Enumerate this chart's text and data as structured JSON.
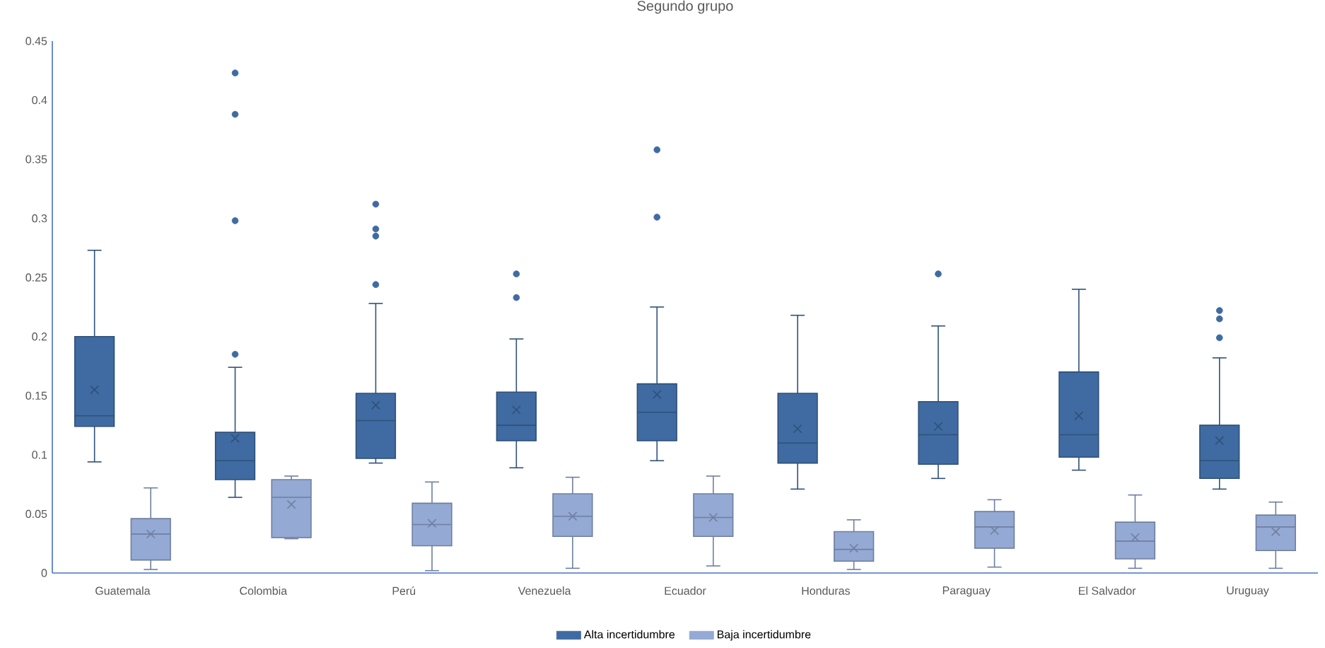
{
  "chart_data": {
    "type": "box",
    "title": "Segundo grupo",
    "categories": [
      "Guatemala",
      "Colombia",
      "Perú",
      "Venezuela",
      "Ecuador",
      "Honduras",
      "Paraguay",
      "El Salvador",
      "Uruguay"
    ],
    "ylim": [
      0,
      0.45
    ],
    "yticks": [
      0,
      0.05,
      0.1,
      0.15,
      0.2,
      0.25,
      0.3,
      0.35,
      0.4,
      0.45
    ],
    "legend": "bottom",
    "grid": false,
    "series": [
      {
        "name": "Alta incertidumbre",
        "color": "#3f6ba2",
        "boxes": [
          {
            "low": 0.094,
            "q1": 0.124,
            "median": 0.133,
            "q3": 0.2,
            "high": 0.273,
            "mean": 0.155
          },
          {
            "low": 0.064,
            "q1": 0.079,
            "median": 0.095,
            "q3": 0.119,
            "high": 0.174,
            "mean": 0.114,
            "outliers": [
              0.423,
              0.388,
              0.298,
              0.185
            ]
          },
          {
            "low": 0.093,
            "q1": 0.097,
            "median": 0.129,
            "q3": 0.152,
            "high": 0.228,
            "mean": 0.142,
            "outliers": [
              0.312,
              0.291,
              0.285,
              0.244
            ]
          },
          {
            "low": 0.089,
            "q1": 0.112,
            "median": 0.125,
            "q3": 0.153,
            "high": 0.198,
            "mean": 0.138,
            "outliers": [
              0.253,
              0.233
            ]
          },
          {
            "low": 0.095,
            "q1": 0.112,
            "median": 0.136,
            "q3": 0.16,
            "high": 0.225,
            "mean": 0.151,
            "outliers": [
              0.358,
              0.301
            ]
          },
          {
            "low": 0.071,
            "q1": 0.093,
            "median": 0.11,
            "q3": 0.152,
            "high": 0.218,
            "mean": 0.122
          },
          {
            "low": 0.08,
            "q1": 0.092,
            "median": 0.117,
            "q3": 0.145,
            "high": 0.209,
            "mean": 0.124,
            "outliers": [
              0.253
            ]
          },
          {
            "low": 0.087,
            "q1": 0.098,
            "median": 0.117,
            "q3": 0.17,
            "high": 0.24,
            "mean": 0.133
          },
          {
            "low": 0.071,
            "q1": 0.08,
            "median": 0.095,
            "q3": 0.125,
            "high": 0.182,
            "mean": 0.112,
            "outliers": [
              0.222,
              0.215,
              0.199
            ]
          }
        ]
      },
      {
        "name": "Baja incertidumbre",
        "color": "#94a9d4",
        "boxes": [
          {
            "low": 0.003,
            "q1": 0.011,
            "median": 0.033,
            "q3": 0.046,
            "high": 0.072,
            "mean": 0.033
          },
          {
            "low": 0.029,
            "q1": 0.03,
            "median": 0.064,
            "q3": 0.079,
            "high": 0.082,
            "mean": 0.058
          },
          {
            "low": 0.002,
            "q1": 0.023,
            "median": 0.041,
            "q3": 0.059,
            "high": 0.077,
            "mean": 0.042
          },
          {
            "low": 0.004,
            "q1": 0.031,
            "median": 0.048,
            "q3": 0.067,
            "high": 0.081,
            "mean": 0.048
          },
          {
            "low": 0.006,
            "q1": 0.031,
            "median": 0.047,
            "q3": 0.067,
            "high": 0.082,
            "mean": 0.047
          },
          {
            "low": 0.003,
            "q1": 0.01,
            "median": 0.02,
            "q3": 0.035,
            "high": 0.045,
            "mean": 0.021
          },
          {
            "low": 0.005,
            "q1": 0.021,
            "median": 0.039,
            "q3": 0.052,
            "high": 0.062,
            "mean": 0.036
          },
          {
            "low": 0.004,
            "q1": 0.012,
            "median": 0.027,
            "q3": 0.043,
            "high": 0.066,
            "mean": 0.03
          },
          {
            "low": 0.004,
            "q1": 0.019,
            "median": 0.039,
            "q3": 0.049,
            "high": 0.06,
            "mean": 0.035
          }
        ]
      }
    ]
  }
}
